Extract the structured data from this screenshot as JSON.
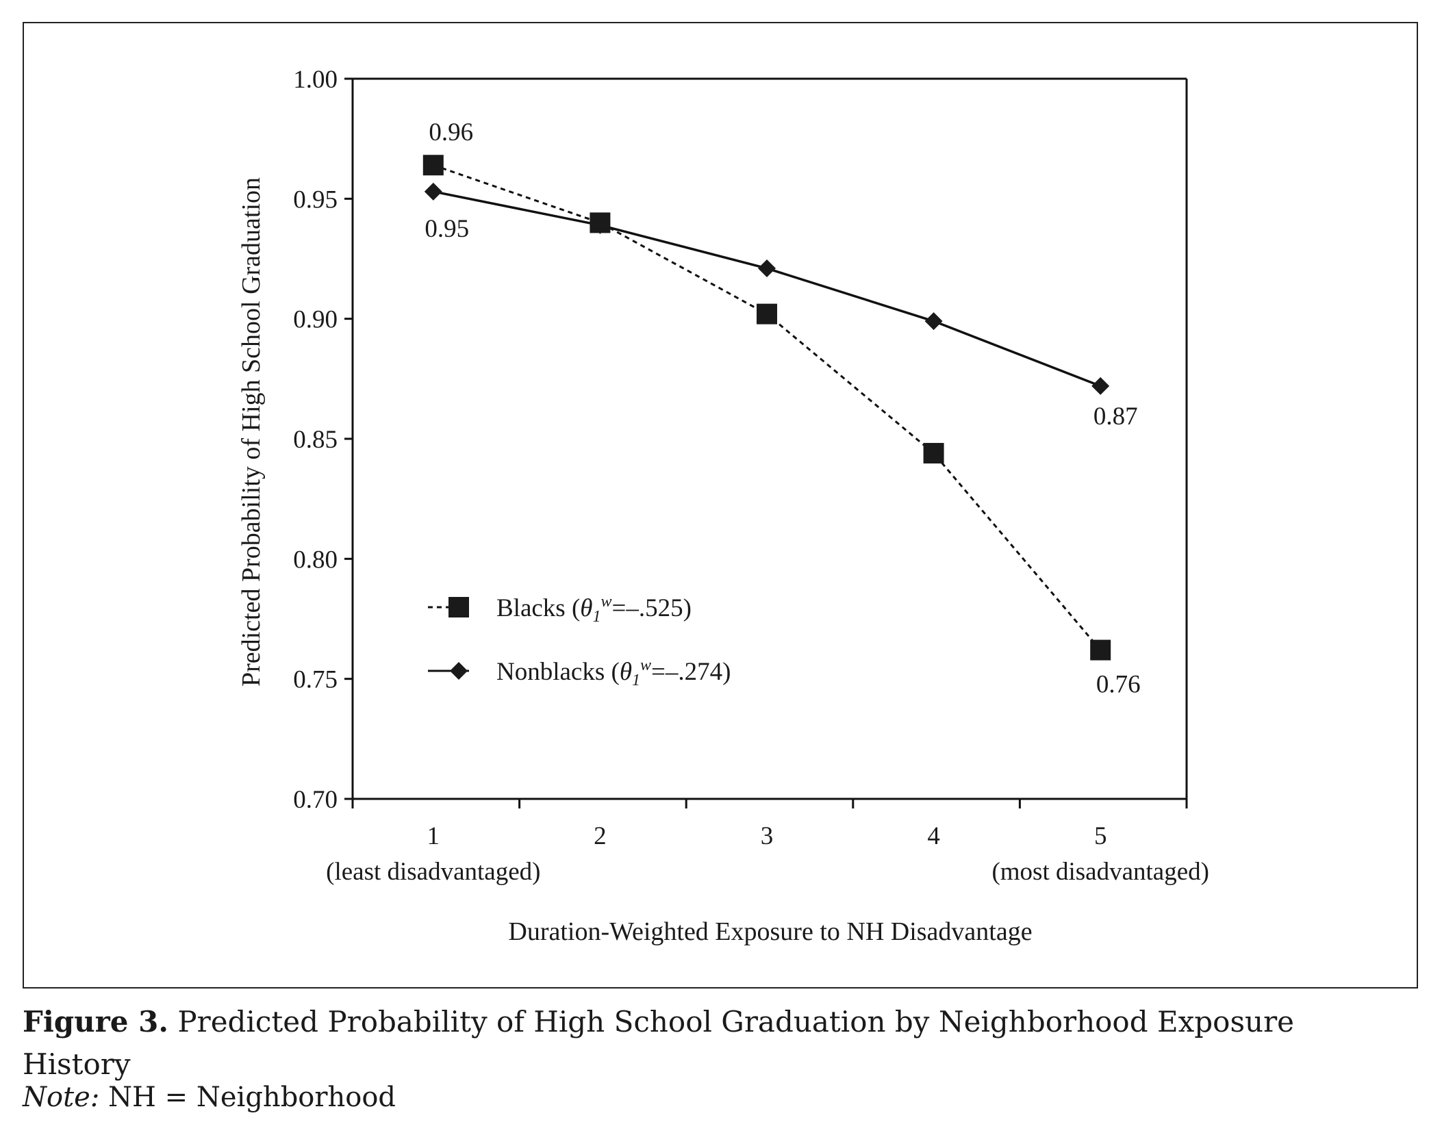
{
  "chart_data": {
    "type": "line",
    "x": [
      1,
      2,
      3,
      4,
      5
    ],
    "xtick_labels": [
      "1",
      "2",
      "3",
      "4",
      "5"
    ],
    "xtick_sublabels": {
      "1": "(least disadvantaged)",
      "5": "(most disadvantaged)"
    },
    "xlabel": "Duration-Weighted Exposure to NH Disadvantage",
    "ylabel": "Predicted Probability of High School  Graduation",
    "ylim": [
      0.7,
      1.0
    ],
    "yticks": [
      "0.70",
      "0.75",
      "0.80",
      "0.85",
      "0.90",
      "0.95",
      "1.00"
    ],
    "grid": false,
    "legend_position": "lower-left",
    "series": [
      {
        "name": "Blacks",
        "legend_coef": "=–.525",
        "marker": "square",
        "line_style": "dashed",
        "values": [
          0.964,
          0.94,
          0.902,
          0.844,
          0.762
        ],
        "data_labels": {
          "0": "0.96",
          "4": "0.76"
        }
      },
      {
        "name": "Nonblacks",
        "legend_coef": "=–.274",
        "marker": "diamond",
        "line_style": "solid",
        "values": [
          0.953,
          0.939,
          0.921,
          0.899,
          0.872
        ],
        "data_labels": {
          "0": "0.95",
          "4": "0.87"
        }
      }
    ]
  },
  "caption": {
    "label": "Figure 3.",
    "text": " Predicted Probability of High School Graduation by Neighborhood Exposure History"
  },
  "note": {
    "label": "Note:",
    "text": " NH = Neighborhood"
  }
}
